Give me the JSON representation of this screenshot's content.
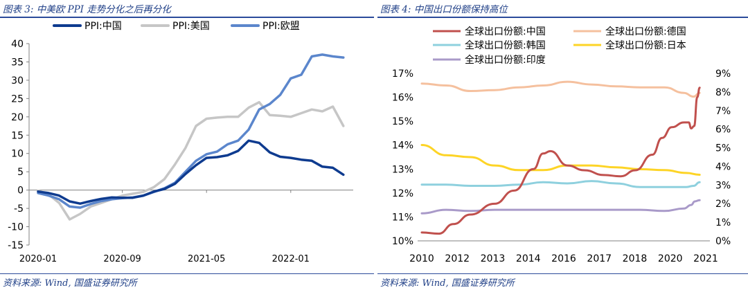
{
  "colors": {
    "header": "#1f3f87"
  },
  "left": {
    "title": "图表 3:  中美欧 PPI 走势分化之后再分化",
    "source": "资料来源:  Wind,  国盛证券研究所"
  },
  "right": {
    "title": "图表 4:  中国出口份额保持高位",
    "source": "资料来源:  Wind,  国盛证券研究所"
  },
  "chart_data": [
    {
      "type": "line",
      "title": "中美欧 PPI 走势分化之后再分化",
      "ylim": [
        -15,
        40
      ],
      "yticks": [
        -15,
        -10,
        -5,
        0,
        5,
        10,
        15,
        20,
        25,
        30,
        35,
        40
      ],
      "xticks": [
        {
          "i": 0,
          "label": "2020-01"
        },
        {
          "i": 8,
          "label": "2020-09"
        },
        {
          "i": 16,
          "label": "2021-05"
        },
        {
          "i": 24,
          "label": "2022-01"
        }
      ],
      "xcount": 30,
      "legend_position": "top",
      "series": [
        {
          "name": "PPI:中国",
          "color": "#0e3b8f",
          "width": 3.5,
          "values": [
            -0.4,
            -0.8,
            -1.5,
            -3.1,
            -3.7,
            -3.0,
            -2.4,
            -2.0,
            -2.1,
            -2.1,
            -1.5,
            -0.4,
            0.3,
            1.7,
            4.4,
            6.8,
            8.8,
            9.0,
            9.5,
            10.7,
            13.5,
            12.9,
            10.3,
            9.1,
            8.8,
            8.3,
            8.0,
            6.4,
            6.1,
            4.2
          ]
        },
        {
          "name": "PPI:美国",
          "color": "#c6c6c6",
          "width": 3.5,
          "values": [
            -0.2,
            -1.2,
            -3.5,
            -8.0,
            -6.5,
            -4.5,
            -3.5,
            -2.5,
            -1.5,
            -1.0,
            -0.5,
            0.8,
            3.0,
            7.0,
            11.5,
            17.5,
            19.5,
            19.8,
            20.0,
            20.0,
            22.5,
            24.0,
            20.5,
            20.3,
            20.0,
            21.0,
            22.0,
            21.5,
            22.8,
            17.5
          ]
        },
        {
          "name": "PPI:欧盟",
          "color": "#5b86cc",
          "width": 3.5,
          "values": [
            -0.8,
            -1.5,
            -2.5,
            -4.5,
            -4.8,
            -3.8,
            -3.0,
            -2.5,
            -2.2,
            -2.0,
            -1.5,
            -0.5,
            0.5,
            2.0,
            5.0,
            8.0,
            9.8,
            10.5,
            12.5,
            13.5,
            16.5,
            22.0,
            23.5,
            26.0,
            30.5,
            31.5,
            36.5,
            37.0,
            36.5,
            36.2
          ]
        }
      ]
    },
    {
      "type": "line",
      "title": "中国出口份额保持高位",
      "ylim": [
        10,
        17
      ],
      "yticks": [
        "10%",
        "11%",
        "12%",
        "13%",
        "14%",
        "15%",
        "16%",
        "17%"
      ],
      "y2lim": [
        0,
        9
      ],
      "y2ticks": [
        "0%",
        "1%",
        "2%",
        "3%",
        "4%",
        "5%",
        "6%",
        "7%",
        "8%",
        "9%"
      ],
      "xlim": [
        2010,
        2021.7
      ],
      "xticks": [
        "2010",
        "2012",
        "2013",
        "2014",
        "2016",
        "2017",
        "2018",
        "2020",
        "2021"
      ],
      "legend_position": "top",
      "series": [
        {
          "name": "全球出口份额:中国",
          "axis": "left",
          "color": "#c0504d",
          "points": [
            [
              2010,
              10.35
            ],
            [
              2010.7,
              10.3
            ],
            [
              2011.3,
              10.7
            ],
            [
              2012,
              11.1
            ],
            [
              2013,
              11.55
            ],
            [
              2013.8,
              12.1
            ],
            [
              2014.6,
              13.0
            ],
            [
              2015,
              13.65
            ],
            [
              2015.3,
              13.75
            ],
            [
              2016,
              13.15
            ],
            [
              2016.7,
              12.95
            ],
            [
              2017.5,
              12.75
            ],
            [
              2018.2,
              12.7
            ],
            [
              2018.8,
              12.95
            ],
            [
              2019.5,
              13.6
            ],
            [
              2019.9,
              14.3
            ],
            [
              2020.3,
              14.75
            ],
            [
              2020.8,
              14.95
            ],
            [
              2021.0,
              14.95
            ],
            [
              2021.1,
              14.7
            ],
            [
              2021.22,
              14.8
            ],
            [
              2021.35,
              16.0
            ],
            [
              2021.45,
              16.4
            ]
          ]
        },
        {
          "name": "全球出口份额:德国",
          "axis": "right",
          "color": "#f5c09e",
          "points": [
            [
              2010,
              8.45
            ],
            [
              2011,
              8.35
            ],
            [
              2012,
              8.05
            ],
            [
              2013,
              8.1
            ],
            [
              2014,
              8.25
            ],
            [
              2015,
              8.35
            ],
            [
              2016,
              8.55
            ],
            [
              2017,
              8.4
            ],
            [
              2018,
              8.3
            ],
            [
              2019,
              8.25
            ],
            [
              2020,
              8.25
            ],
            [
              2020.8,
              7.95
            ],
            [
              2021.2,
              7.75
            ],
            [
              2021.45,
              7.95
            ]
          ]
        },
        {
          "name": "全球出口份额:韩国",
          "axis": "left",
          "color": "#8ed0de",
          "points": [
            [
              2010,
              12.35
            ],
            [
              2011,
              12.35
            ],
            [
              2012,
              12.3
            ],
            [
              2013,
              12.3
            ],
            [
              2014,
              12.35
            ],
            [
              2015,
              12.45
            ],
            [
              2016,
              12.4
            ],
            [
              2017,
              12.5
            ],
            [
              2018,
              12.4
            ],
            [
              2019,
              12.25
            ],
            [
              2020,
              12.25
            ],
            [
              2020.9,
              12.25
            ],
            [
              2021.2,
              12.3
            ],
            [
              2021.45,
              12.45
            ]
          ]
        },
        {
          "name": "全球出口份额:日本",
          "axis": "right",
          "color": "#fdd426",
          "points": [
            [
              2010,
              5.15
            ],
            [
              2011,
              4.6
            ],
            [
              2012,
              4.5
            ],
            [
              2013,
              4.05
            ],
            [
              2014,
              3.8
            ],
            [
              2015,
              3.8
            ],
            [
              2016,
              4.05
            ],
            [
              2017,
              4.05
            ],
            [
              2018,
              3.95
            ],
            [
              2019,
              3.85
            ],
            [
              2020,
              3.8
            ],
            [
              2020.9,
              3.65
            ],
            [
              2021.45,
              3.55
            ]
          ]
        },
        {
          "name": "全球出口份额:印度",
          "axis": "left",
          "color": "#a99ac9",
          "points": [
            [
              2010,
              11.15
            ],
            [
              2011,
              11.3
            ],
            [
              2012,
              11.25
            ],
            [
              2013,
              11.3
            ],
            [
              2014,
              11.3
            ],
            [
              2015,
              11.3
            ],
            [
              2016,
              11.3
            ],
            [
              2017,
              11.3
            ],
            [
              2018,
              11.3
            ],
            [
              2019,
              11.3
            ],
            [
              2020,
              11.25
            ],
            [
              2020.8,
              11.35
            ],
            [
              2021.1,
              11.5
            ],
            [
              2021.25,
              11.65
            ],
            [
              2021.45,
              11.7
            ]
          ]
        }
      ]
    }
  ]
}
